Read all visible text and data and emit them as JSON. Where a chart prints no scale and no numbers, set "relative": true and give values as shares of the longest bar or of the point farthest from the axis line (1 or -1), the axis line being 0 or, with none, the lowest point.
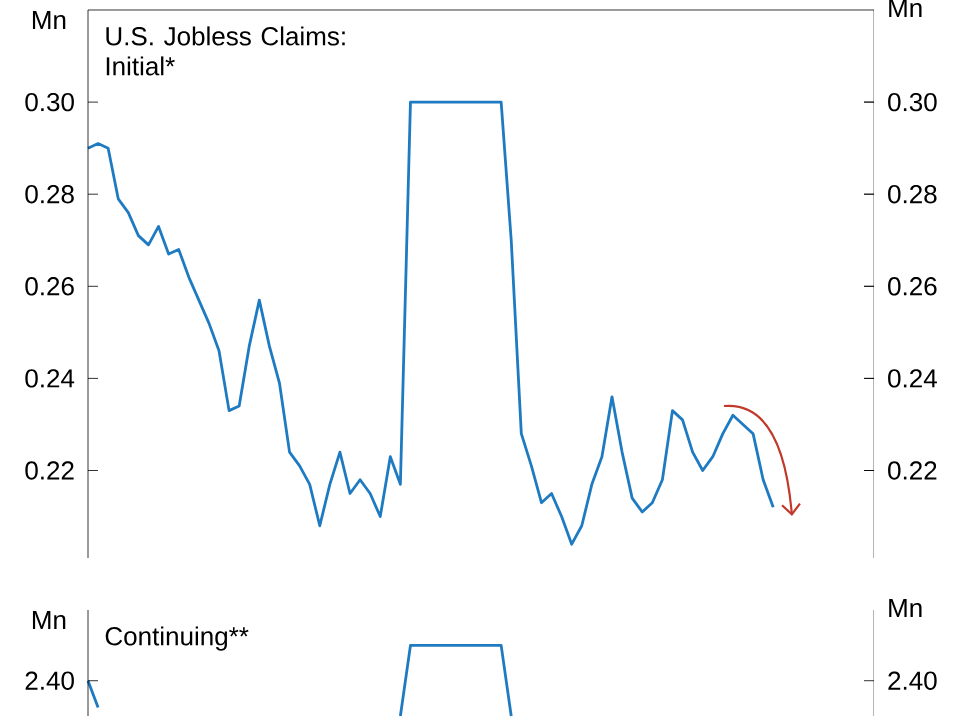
{
  "chart_data": [
    {
      "type": "line",
      "title": "U.S. Jobless Claims: Initial*",
      "ylabel": "Mn",
      "y2label": "Mn",
      "color": "#1f7bc1",
      "categories": [
        null,
        null,
        null,
        null,
        null,
        null,
        null,
        null,
        null,
        null,
        null,
        null,
        null,
        null,
        null,
        null,
        null,
        null,
        null,
        null,
        null,
        null,
        null,
        null,
        null,
        null,
        null,
        null,
        null,
        null,
        null,
        null,
        null,
        null,
        null,
        null,
        null,
        null,
        null,
        null,
        null,
        null,
        null,
        null,
        null,
        null,
        null,
        null,
        null,
        null,
        null,
        null,
        null,
        null,
        null,
        null,
        null,
        null,
        null,
        null,
        null,
        null,
        null,
        null,
        null,
        null,
        null,
        null,
        null,
        null,
        null,
        null,
        null,
        null,
        null,
        null,
        null,
        null,
        null
      ],
      "values": [
        0.29,
        0.291,
        0.29,
        0.279,
        0.276,
        0.271,
        0.269,
        0.273,
        0.267,
        0.268,
        0.262,
        0.257,
        0.252,
        0.246,
        0.233,
        0.234,
        0.247,
        0.257,
        0.247,
        0.239,
        0.224,
        0.221,
        0.217,
        0.208,
        0.217,
        0.224,
        0.215,
        0.218,
        0.215,
        0.21,
        0.223,
        0.217,
        0.3,
        0.3,
        0.3,
        0.3,
        0.3,
        0.3,
        0.3,
        0.3,
        0.3,
        0.3,
        0.27,
        0.228,
        0.221,
        0.213,
        0.215,
        0.21,
        0.204,
        0.208,
        0.217,
        0.223,
        0.236,
        0.224,
        0.214,
        0.211,
        0.213,
        0.218,
        0.233,
        0.231,
        0.224,
        0.22,
        0.223,
        0.228,
        0.232,
        0.23,
        0.228,
        0.218,
        0.212,
        null,
        null,
        null,
        null,
        null,
        null,
        null,
        null,
        null,
        null
      ],
      "ylim": [
        0.201,
        0.32
      ],
      "yticks": [
        {
          "value": 0.22,
          "label": "0.22"
        },
        {
          "value": 0.24,
          "label": "0.24"
        },
        {
          "value": 0.26,
          "label": "0.26"
        },
        {
          "value": 0.28,
          "label": "0.28"
        },
        {
          "value": 0.3,
          "label": "0.30"
        }
      ],
      "y2lim": [
        0.201,
        0.32
      ],
      "y2ticks": [
        {
          "value": 0.22,
          "label": "0.22"
        },
        {
          "value": 0.24,
          "label": "0.24"
        },
        {
          "value": 0.26,
          "label": "0.26"
        },
        {
          "value": 0.28,
          "label": "0.28"
        },
        {
          "value": 0.3,
          "label": "0.30"
        }
      ]
    },
    {
      "type": "line",
      "title": "Continuing**",
      "ylabel": "Mn",
      "y2label": "Mn",
      "color": "#1f7bc1",
      "relative": true,
      "annotations": [
        "2.40",
        "2.40"
      ],
      "categories": [
        null,
        null,
        null,
        null,
        null,
        null,
        null,
        null,
        null,
        null,
        null,
        null,
        null,
        null,
        null,
        null,
        null,
        null,
        null,
        null,
        null,
        null,
        null,
        null,
        null,
        null,
        null,
        null,
        null,
        null,
        null,
        null,
        null,
        null,
        null,
        null,
        null,
        null,
        null,
        null,
        null,
        null,
        null,
        null,
        null,
        null,
        null,
        null,
        null,
        null,
        null,
        null,
        null,
        null,
        null,
        null,
        null,
        null,
        null,
        null,
        null,
        null,
        null,
        null,
        null,
        null,
        null,
        null,
        null,
        null,
        null,
        null,
        null,
        null,
        null,
        null,
        null,
        null,
        null
      ],
      "values": [
        0.5,
        0.12,
        null,
        null,
        null,
        null,
        null,
        null,
        null,
        null,
        null,
        null,
        null,
        null,
        null,
        null,
        null,
        null,
        null,
        null,
        null,
        null,
        null,
        null,
        null,
        null,
        null,
        null,
        null,
        null,
        null,
        0,
        1,
        1,
        1,
        1,
        1,
        1,
        1,
        1,
        1,
        1,
        0,
        null,
        null,
        null,
        null,
        null,
        null,
        null,
        null,
        null,
        null,
        null,
        null,
        null,
        null,
        null,
        null,
        null,
        null,
        null,
        null,
        null,
        null,
        null,
        null,
        null,
        null,
        null,
        null,
        null,
        null,
        null,
        null,
        null,
        null,
        null,
        null
      ]
    }
  ]
}
